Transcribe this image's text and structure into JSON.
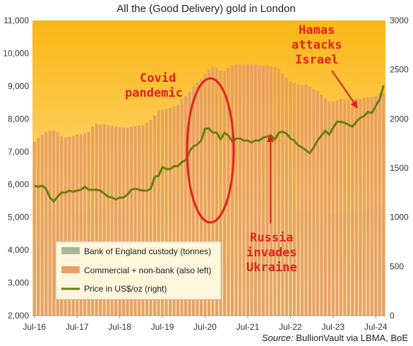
{
  "chart_data": {
    "type": "bar",
    "title": "All the (Good Delivery) gold in London",
    "source_prefix": "Source:",
    "source_text": " BullionVault via LBMA, BoE",
    "y_left": {
      "min": 2000,
      "max": 11000,
      "step": 1000,
      "tick_labels": [
        "2,000",
        "3,000",
        "4,000",
        "5,000",
        "6,000",
        "7,000",
        "8,000",
        "9,000",
        "10,000",
        "11,000"
      ]
    },
    "y_right": {
      "min": 0,
      "max": 3000,
      "step": 500,
      "tick_labels": [
        "0",
        "500",
        "1000",
        "1500",
        "2000",
        "2500",
        "3000"
      ]
    },
    "x_tick_labels": [
      "Jul-16",
      "Jul-17",
      "Jul-18",
      "Jul-19",
      "Jul-20",
      "Jul-21",
      "Jul-22",
      "Jul-23",
      "Jul-24"
    ],
    "series": [
      {
        "name": "Bank of England custody (tonnes)",
        "color": "#a9b896",
        "values": [
          4940,
          4980,
          5040,
          5060,
          5100,
          5100,
          5090,
          5060,
          5070,
          5080,
          5110,
          5110,
          5130,
          5150,
          5210,
          5260,
          5300,
          5300,
          5280,
          5280,
          5250,
          5220,
          5200,
          5170,
          5160,
          5170,
          5100,
          5000,
          5000,
          4980,
          5000,
          5020,
          5090,
          5180,
          5250,
          5330,
          5440,
          5460,
          5420,
          5360,
          5350,
          5380,
          5440,
          5510,
          5590,
          5640,
          5660,
          5680,
          5700,
          5730,
          5760,
          5780,
          5780,
          5780,
          5770,
          5760,
          5740,
          5720,
          5680,
          5650,
          5570,
          5500,
          5420,
          5350,
          5290,
          5270,
          5250,
          5240,
          5220,
          5210,
          5190,
          5170,
          5150,
          5130,
          5120,
          5120,
          5110,
          5110,
          5100,
          5100,
          5120,
          5140,
          5170,
          5180,
          5190,
          5210,
          5240,
          5280,
          5330,
          5380,
          5420
        ]
      },
      {
        "name": "Commercial + non-bank (also left)",
        "color": "#e8a067",
        "values": [
          7300,
          7420,
          7520,
          7600,
          7640,
          7630,
          7600,
          7460,
          7440,
          7460,
          7480,
          7520,
          7540,
          7560,
          7600,
          7770,
          7850,
          7830,
          7840,
          7810,
          7790,
          7760,
          7740,
          7730,
          7720,
          7760,
          7780,
          7810,
          7800,
          7880,
          7970,
          8100,
          8260,
          8280,
          8300,
          8330,
          8380,
          8440,
          8600,
          8700,
          8820,
          8980,
          9110,
          9220,
          9380,
          9500,
          9590,
          9560,
          9470,
          9460,
          9560,
          9640,
          9660,
          9660,
          9660,
          9660,
          9670,
          9660,
          9640,
          9620,
          9620,
          9600,
          9580,
          9530,
          9390,
          9260,
          9140,
          9090,
          9060,
          9040,
          9040,
          8980,
          8900,
          8850,
          8740,
          8620,
          8530,
          8530,
          8560,
          8610,
          8600,
          8620,
          8600,
          8590,
          8610,
          8650,
          8660,
          8670,
          8690,
          8770,
          8790
        ]
      },
      {
        "name": "Price in US$/oz (right)",
        "color": "#6b7d10",
        "values": [
          1320,
          1310,
          1320,
          1290,
          1200,
          1160,
          1210,
          1250,
          1250,
          1270,
          1260,
          1270,
          1280,
          1310,
          1280,
          1280,
          1280,
          1270,
          1240,
          1210,
          1200,
          1180,
          1200,
          1200,
          1230,
          1280,
          1290,
          1280,
          1270,
          1270,
          1290,
          1410,
          1420,
          1510,
          1490,
          1490,
          1520,
          1520,
          1560,
          1580,
          1670,
          1720,
          1740,
          1780,
          1900,
          1900,
          1860,
          1860,
          1790,
          1860,
          1830,
          1770,
          1800,
          1800,
          1780,
          1780,
          1760,
          1780,
          1780,
          1810,
          1820,
          1830,
          1790,
          1860,
          1870,
          1850,
          1800,
          1780,
          1730,
          1710,
          1680,
          1650,
          1710,
          1780,
          1830,
          1880,
          1840,
          1910,
          1970,
          1970,
          1960,
          1940,
          1920,
          1970,
          2010,
          2030,
          2070,
          2060,
          2130,
          2200,
          2340
        ]
      }
    ],
    "x_count": 91,
    "annotations": [
      {
        "id": "covid",
        "lines": [
          "Covid",
          "pandemic"
        ]
      },
      {
        "id": "hamas",
        "lines": [
          "Hamas",
          "attacks",
          "Israel"
        ]
      },
      {
        "id": "russia",
        "lines": [
          "Russia",
          "invades",
          "Ukraine"
        ]
      }
    ],
    "legend_placement": "bottom-left",
    "grid": false,
    "colors": {
      "top_fill": "#fbb615",
      "bottom_fill": "#fde9a8",
      "annotation": "#e2231a"
    }
  }
}
